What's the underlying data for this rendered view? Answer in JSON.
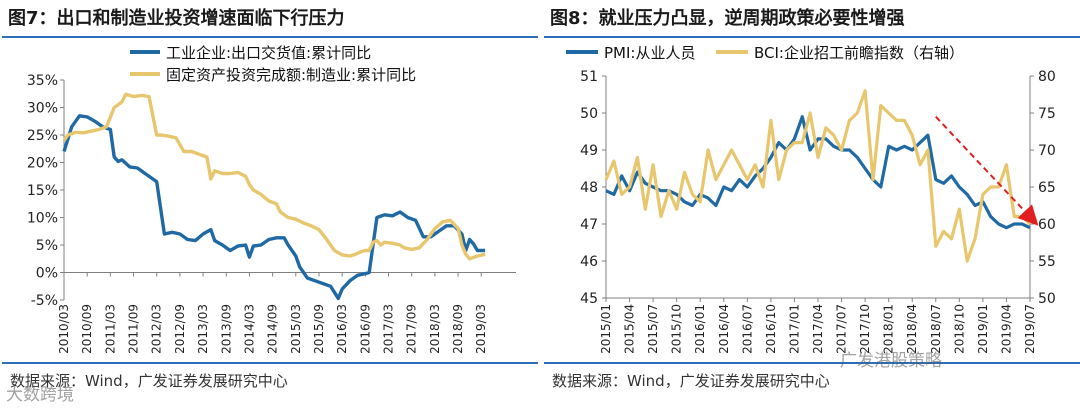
{
  "chart_data": [
    {
      "type": "line",
      "title": "图7：出口和制造业投资增速面临下行压力",
      "source": "数据来源：Wind，广发证券发展研究中心",
      "ylim": [
        -5,
        35
      ],
      "yticks": [
        "35%",
        "30%",
        "25%",
        "20%",
        "15%",
        "10%",
        "5%",
        "0%",
        "-5%"
      ],
      "ytick_values": [
        35,
        30,
        25,
        20,
        15,
        10,
        5,
        0,
        -5
      ],
      "xticks": [
        "2010/03",
        "2010/09",
        "2011/03",
        "2011/09",
        "2012/03",
        "2012/09",
        "2013/03",
        "2013/09",
        "2014/03",
        "2014/09",
        "2015/03",
        "2015/09",
        "2016/03",
        "2016/09",
        "2017/03",
        "2017/09",
        "2018/03",
        "2018/09",
        "2019/03"
      ],
      "x_start": "2010/03",
      "x_months": 118,
      "series": [
        {
          "name": "工业企业:出口交货值:累计同比",
          "color": "#1f6aa5",
          "points": [
            [
              0,
              22
            ],
            [
              2,
              26.5
            ],
            [
              4,
              28.5
            ],
            [
              6,
              28.3
            ],
            [
              8,
              27.5
            ],
            [
              10,
              26.5
            ],
            [
              12,
              26
            ],
            [
              13,
              21
            ],
            [
              14,
              20.2
            ],
            [
              15,
              20.5
            ],
            [
              17,
              19.2
            ],
            [
              19,
              19
            ],
            [
              21,
              18
            ],
            [
              23,
              17
            ],
            [
              24,
              16.5
            ],
            [
              26,
              7
            ],
            [
              28,
              7.3
            ],
            [
              30,
              7
            ],
            [
              32,
              6
            ],
            [
              34,
              5.8
            ],
            [
              36,
              7
            ],
            [
              38,
              7.8
            ],
            [
              39,
              5.8
            ],
            [
              41,
              5
            ],
            [
              43,
              4
            ],
            [
              45,
              4.8
            ],
            [
              47,
              5
            ],
            [
              48,
              2.8
            ],
            [
              49,
              4.8
            ],
            [
              51,
              5
            ],
            [
              53,
              6
            ],
            [
              55,
              6.3
            ],
            [
              57,
              6.3
            ],
            [
              58,
              5
            ],
            [
              60,
              3
            ],
            [
              61,
              1
            ],
            [
              63,
              -1
            ],
            [
              65,
              -1.5
            ],
            [
              67,
              -2
            ],
            [
              69,
              -2.5
            ],
            [
              71,
              -4.7
            ],
            [
              72,
              -3
            ],
            [
              74,
              -1.5
            ],
            [
              76,
              -0.5
            ],
            [
              78,
              -0.2
            ],
            [
              79,
              0
            ],
            [
              81,
              10
            ],
            [
              83,
              10.5
            ],
            [
              85,
              10.3
            ],
            [
              87,
              11
            ],
            [
              89,
              10
            ],
            [
              91,
              9.5
            ],
            [
              93,
              6.5
            ],
            [
              95,
              6.5
            ],
            [
              97,
              7.5
            ],
            [
              99,
              8.5
            ],
            [
              101,
              8.5
            ],
            [
              103,
              7
            ],
            [
              104,
              4
            ],
            [
              105,
              6
            ],
            [
              106,
              5.2
            ],
            [
              107,
              4
            ],
            [
              109,
              4
            ]
          ]
        },
        {
          "name": "固定资产投资完成额:制造业:累计同比",
          "color": "#e8c66d",
          "points": [
            [
              0,
              24
            ],
            [
              1,
              25
            ],
            [
              3,
              25.5
            ],
            [
              5,
              25.4
            ],
            [
              7,
              25.7
            ],
            [
              9,
              26
            ],
            [
              11,
              26.5
            ],
            [
              13,
              30
            ],
            [
              14,
              30.5
            ],
            [
              15,
              31
            ],
            [
              16,
              32.4
            ],
            [
              18,
              32
            ],
            [
              20,
              32.2
            ],
            [
              22,
              32
            ],
            [
              24,
              25
            ],
            [
              25,
              25
            ],
            [
              27,
              24.8
            ],
            [
              29,
              24.5
            ],
            [
              31,
              22
            ],
            [
              33,
              22
            ],
            [
              35,
              21.5
            ],
            [
              37,
              21
            ],
            [
              38,
              17
            ],
            [
              39,
              18.5
            ],
            [
              41,
              18
            ],
            [
              43,
              18
            ],
            [
              45,
              18.2
            ],
            [
              47,
              17.5
            ],
            [
              48,
              16
            ],
            [
              49,
              15
            ],
            [
              51,
              14.2
            ],
            [
              53,
              13
            ],
            [
              55,
              12.5
            ],
            [
              56,
              11
            ],
            [
              58,
              10
            ],
            [
              60,
              9.7
            ],
            [
              62,
              9
            ],
            [
              64,
              8.5
            ],
            [
              66,
              7.8
            ],
            [
              68,
              6
            ],
            [
              70,
              4
            ],
            [
              72,
              3.2
            ],
            [
              74,
              3
            ],
            [
              75,
              3.2
            ],
            [
              77,
              3.8
            ],
            [
              78,
              4
            ],
            [
              79,
              4
            ],
            [
              80,
              5.5
            ],
            [
              81,
              5.8
            ],
            [
              82,
              5
            ],
            [
              83,
              5.5
            ],
            [
              85,
              5.3
            ],
            [
              87,
              5
            ],
            [
              88,
              4.5
            ],
            [
              90,
              4.2
            ],
            [
              92,
              4.5
            ],
            [
              94,
              6
            ],
            [
              96,
              8
            ],
            [
              98,
              9.2
            ],
            [
              100,
              9.5
            ],
            [
              102,
              8
            ],
            [
              103,
              5
            ],
            [
              104,
              3.3
            ],
            [
              105,
              2.5
            ],
            [
              107,
              3
            ],
            [
              109,
              3.3
            ]
          ]
        }
      ]
    },
    {
      "type": "line",
      "title": "图8：就业压力凸显，逆周期政策必要性增强",
      "source": "数据来源：Wind，广发证券发展研究中心",
      "ylim_left": [
        45,
        51
      ],
      "ylim_right": [
        50,
        80
      ],
      "yticks_left": [
        "51",
        "50",
        "49",
        "48",
        "47",
        "46",
        "45"
      ],
      "yticks_left_values": [
        51,
        50,
        49,
        48,
        47,
        46,
        45
      ],
      "yticks_right": [
        "80",
        "75",
        "70",
        "65",
        "60",
        "55",
        "50"
      ],
      "yticks_right_values": [
        80,
        75,
        70,
        65,
        60,
        55,
        50
      ],
      "xticks": [
        "2015/01",
        "2015/04",
        "2015/07",
        "2015/10",
        "2016/01",
        "2016/04",
        "2016/07",
        "2016/10",
        "2017/01",
        "2017/04",
        "2017/07",
        "2017/10",
        "2018/01",
        "2018/04",
        "2018/07",
        "2018/10",
        "2019/01",
        "2019/04",
        "2019/07"
      ],
      "x_start": "2015/01",
      "x_months": 55,
      "series": [
        {
          "name": "PMI:从业人员",
          "axis": "left",
          "color": "#1f6aa5",
          "values": [
            47.9,
            47.8,
            48.3,
            47.9,
            48.4,
            48.1,
            48,
            47.9,
            47.9,
            47.8,
            47.6,
            47.5,
            47.8,
            47.7,
            47.5,
            48,
            47.9,
            48.2,
            48,
            48.3,
            48.5,
            48.8,
            49.2,
            49,
            49.3,
            49.9,
            49,
            49.3,
            49.3,
            49.1,
            49,
            49,
            48.8,
            48.5,
            48.2,
            48,
            49.1,
            49,
            49.1,
            49,
            49.2,
            49.4,
            48.2,
            48.1,
            48.3,
            48,
            47.8,
            47.5,
            47.6,
            47.2,
            47,
            46.9,
            47,
            47,
            46.9
          ]
        },
        {
          "name": "BCI:企业招工前瞻指数（右轴）",
          "axis": "right",
          "color": "#e8c66d",
          "values": [
            66,
            68.5,
            64,
            65,
            69,
            62,
            68,
            61,
            64.5,
            62,
            67,
            64,
            63,
            70,
            66,
            68,
            70,
            68,
            66,
            68,
            65,
            74,
            66,
            70,
            71,
            71,
            75,
            69,
            73,
            72,
            70,
            74,
            75,
            78,
            66,
            76,
            75,
            74,
            74,
            72,
            68,
            70,
            57,
            59,
            58,
            62,
            55,
            58,
            64,
            65,
            65,
            68,
            61,
            61,
            60
          ]
        }
      ],
      "annotation": "red dashed downward arrow from 2018/07 to 2019/08"
    }
  ],
  "watermark_left": "大数跨境",
  "watermark_right": "广发港股策略"
}
